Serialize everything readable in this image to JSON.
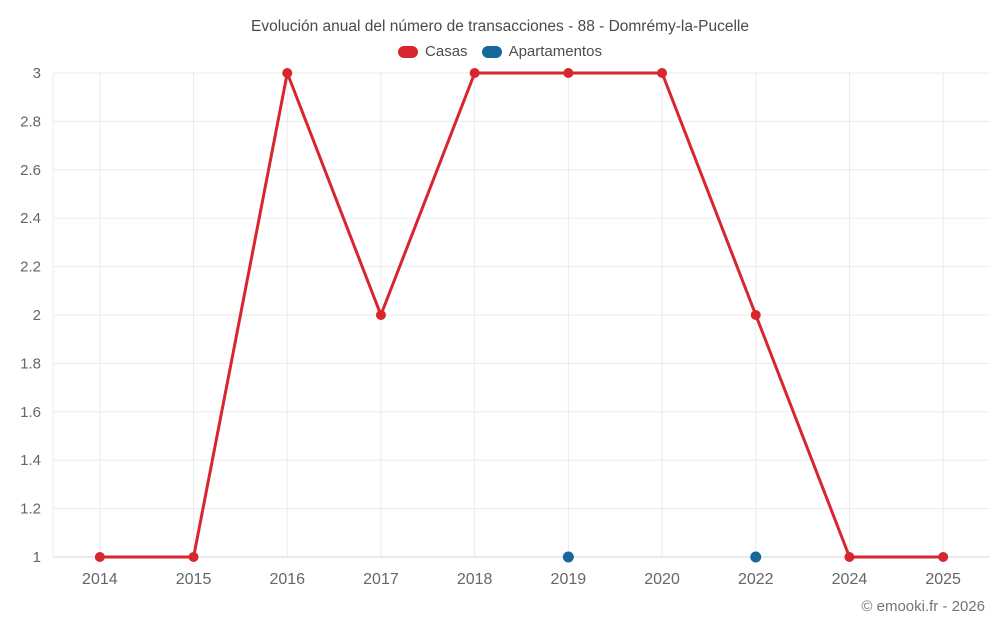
{
  "title": "Evolución anual del número de transacciones - 88 - Domrémy-la-Pucelle",
  "footer": "© emooki.fr - 2026",
  "colors": {
    "casas": "#d7262d",
    "apartamentos": "#17689b",
    "grid": "#ebebeb",
    "axis_line": "#d4d4d4",
    "title_text": "#4a4a4a",
    "tick_text": "#666666",
    "legend_text": "#4d4d4d",
    "footer_text": "#757575"
  },
  "chart_data": {
    "type": "line",
    "title": "Evolución anual del número de transacciones - 88 - Domrémy-la-Pucelle",
    "categories": [
      "2014",
      "2015",
      "2016",
      "2017",
      "2018",
      "2019",
      "2020",
      "2022",
      "2024",
      "2025"
    ],
    "series": [
      {
        "name": "Casas",
        "color": "#d7262d",
        "draw_line": true,
        "values": [
          1,
          1,
          3,
          2,
          3,
          3,
          3,
          2,
          1,
          1
        ]
      },
      {
        "name": "Apartamentos",
        "color": "#17689b",
        "draw_line": false,
        "values": [
          null,
          null,
          null,
          null,
          null,
          1,
          null,
          1,
          null,
          null
        ]
      }
    ],
    "xlabel": "",
    "ylabel": "",
    "ylim": [
      1,
      3
    ],
    "ytick_step": 0.2,
    "ytick_labels": [
      "1",
      "1.2",
      "1.4",
      "1.6",
      "1.8",
      "2",
      "2.2",
      "2.4",
      "2.6",
      "2.8",
      "3"
    ],
    "grid": true,
    "legend_position": "top"
  }
}
